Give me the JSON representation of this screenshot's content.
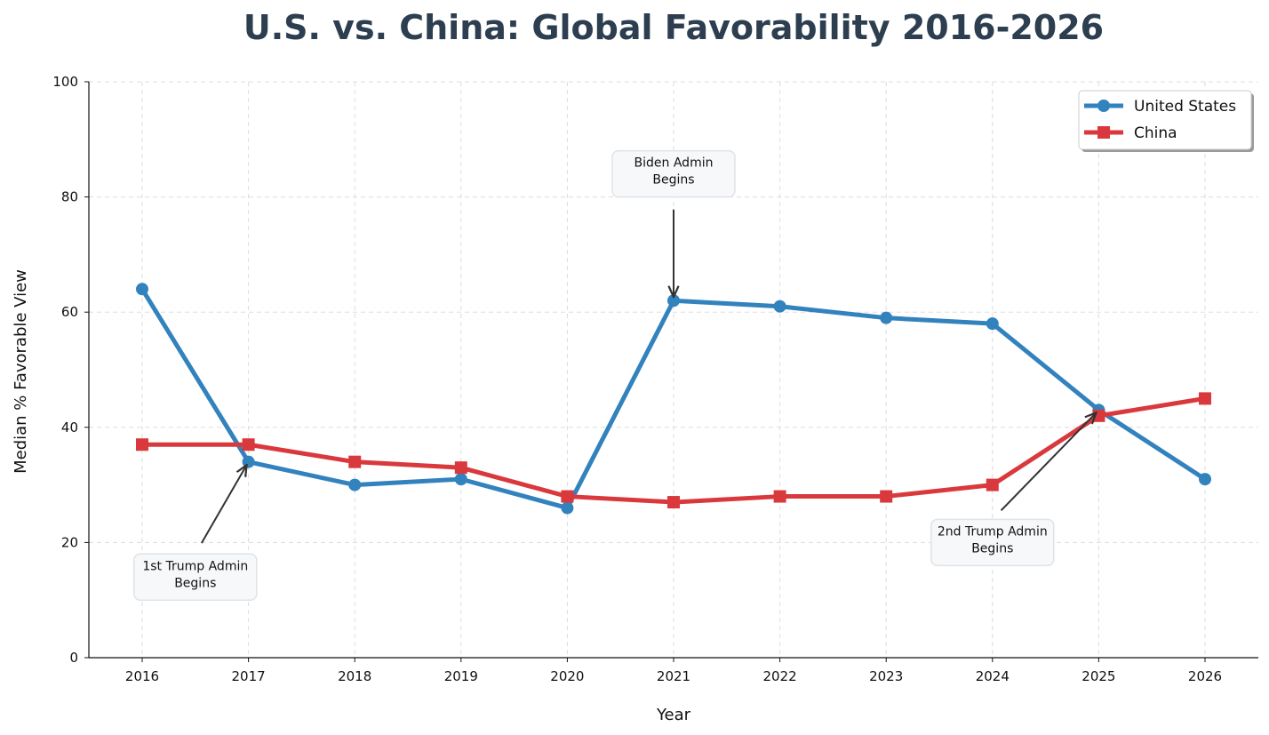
{
  "chart_data": {
    "type": "line",
    "title": "U.S. vs. China: Global Favorability 2016-2026",
    "xlabel": "Year",
    "ylabel": "Median % Favorable View",
    "categories": [
      "2016",
      "2017",
      "2018",
      "2019",
      "2020",
      "2021",
      "2022",
      "2023",
      "2024",
      "2025",
      "2026"
    ],
    "ylim": [
      0,
      100
    ],
    "yticks": [
      0,
      20,
      40,
      60,
      80,
      100
    ],
    "grid": true,
    "legend_position": "top-right",
    "series": [
      {
        "name": "United States",
        "marker": "circle",
        "color": "#3282bd",
        "values": [
          64,
          34,
          30,
          31,
          26,
          62,
          61,
          59,
          58,
          43,
          31
        ]
      },
      {
        "name": "China",
        "marker": "square",
        "color": "#d9393c",
        "values": [
          37,
          37,
          34,
          33,
          28,
          27,
          28,
          28,
          30,
          42,
          45
        ]
      }
    ],
    "annotations": [
      {
        "lines": [
          "1st Trump Admin",
          "Begins"
        ],
        "point_year": "2017",
        "point_value": 34,
        "text_year": 2016.5,
        "text_value": 14
      },
      {
        "lines": [
          "Biden Admin",
          "Begins"
        ],
        "point_year": "2021",
        "point_value": 62,
        "text_year": 2021,
        "text_value": 84
      },
      {
        "lines": [
          "2nd Trump Admin",
          "Begins"
        ],
        "point_year": "2025",
        "point_value": 43,
        "text_year": 2024,
        "text_value": 20
      }
    ]
  }
}
